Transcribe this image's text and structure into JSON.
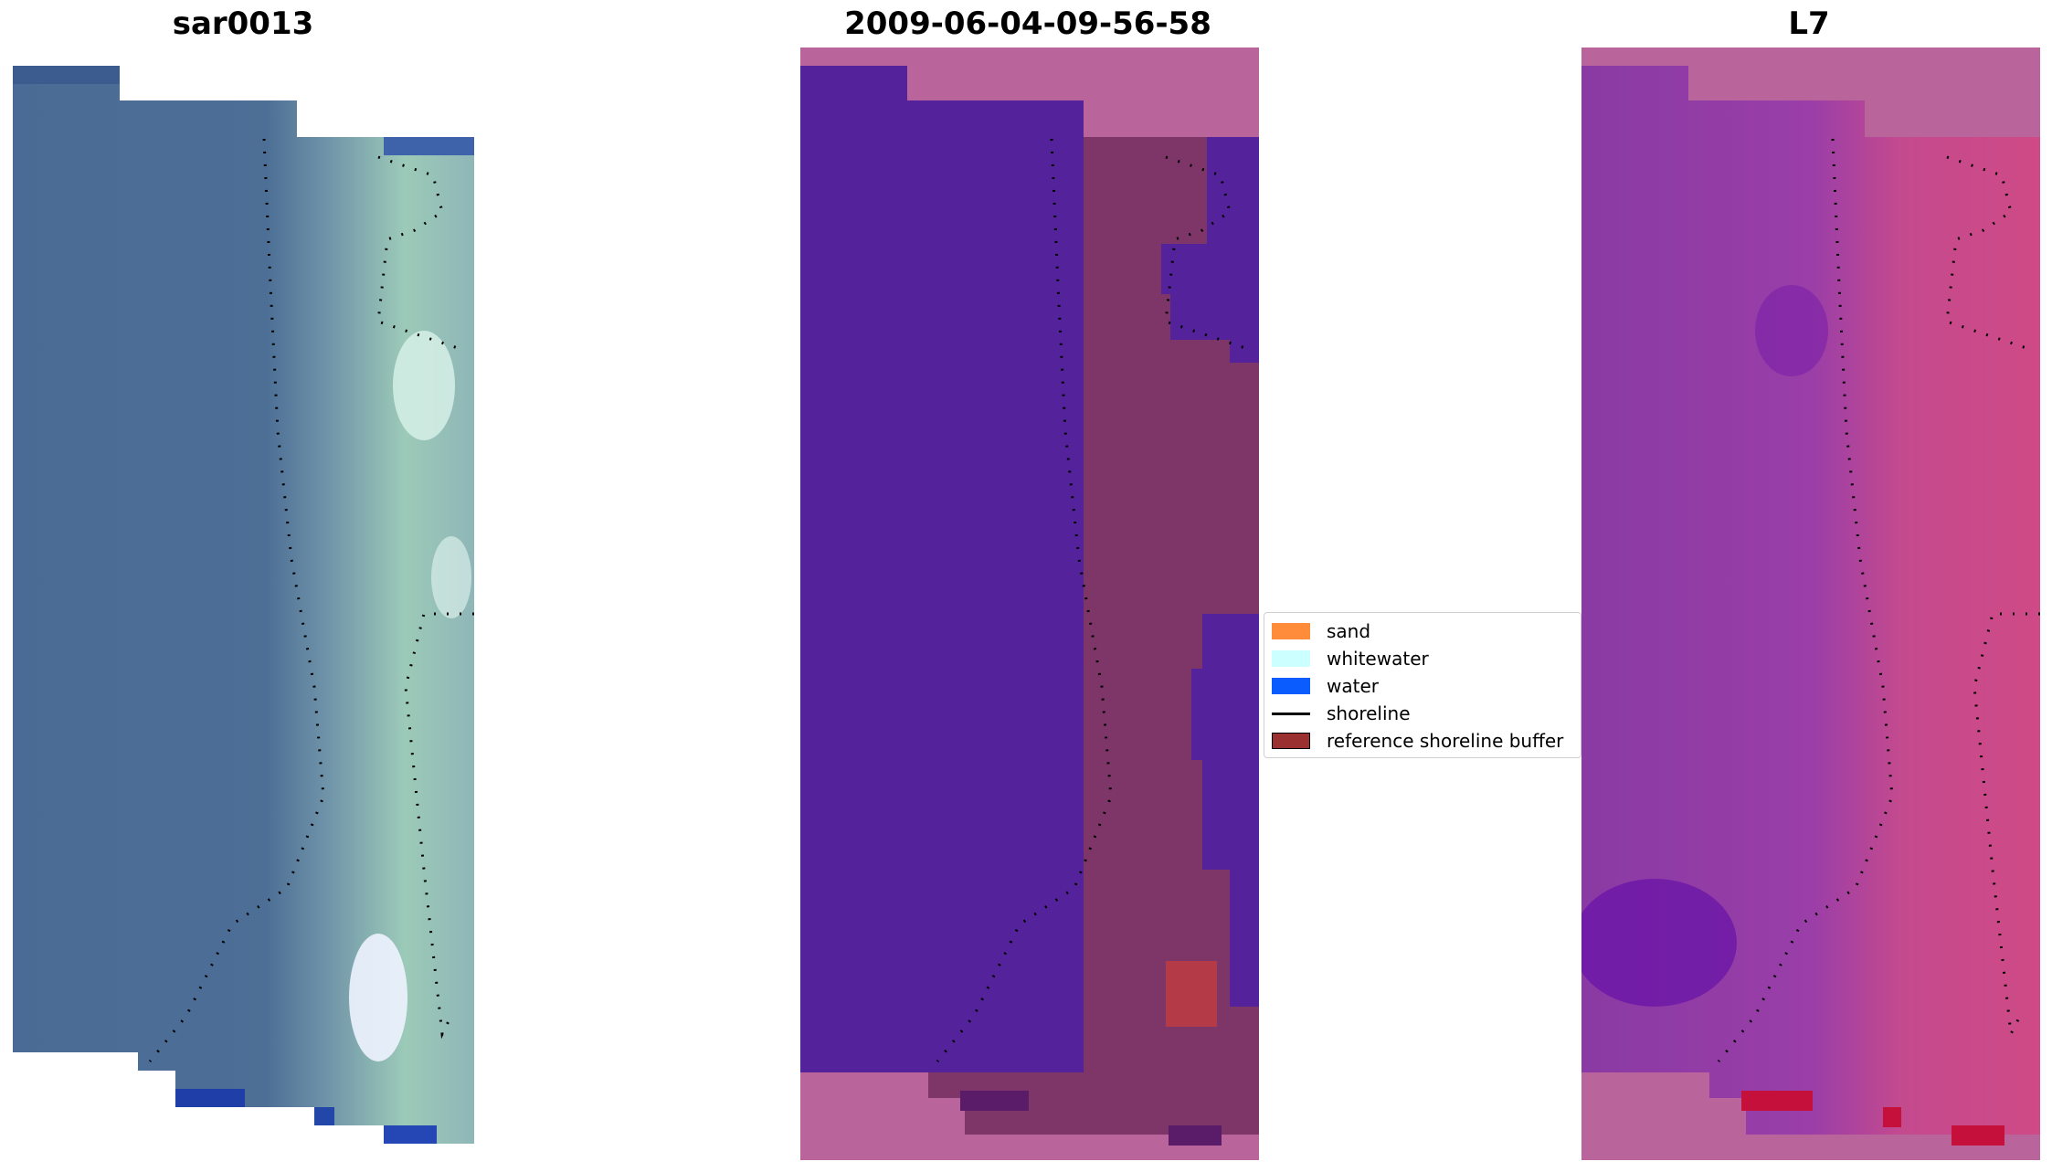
{
  "panels": [
    {
      "id": "rgb",
      "title": "sar0013"
    },
    {
      "id": "classified",
      "title": "2009-06-04-09-56-58"
    },
    {
      "id": "index",
      "title": "L7"
    }
  ],
  "legend": {
    "items": [
      {
        "label": "sand",
        "color": "#ff8c3a",
        "kind": "patch"
      },
      {
        "label": "whitewater",
        "color": "#ccffff",
        "kind": "patch"
      },
      {
        "label": "water",
        "color": "#0a5cff",
        "kind": "patch"
      },
      {
        "label": "shoreline",
        "color": "#000000",
        "kind": "line"
      },
      {
        "label": "reference shoreline buffer",
        "color": "#9b3030",
        "kind": "patch"
      }
    ]
  },
  "colors": {
    "rgb_water": "#4a6b95",
    "rgb_land": "#7aa0b0",
    "rgb_beach": "#a9d2c0",
    "class_water": "#54229a",
    "class_nodata": "#b9649a",
    "class_land": "#7e3669",
    "index_low": "#8f3aa8",
    "index_high": "#d64880",
    "index_nodata": "#b9649a"
  }
}
